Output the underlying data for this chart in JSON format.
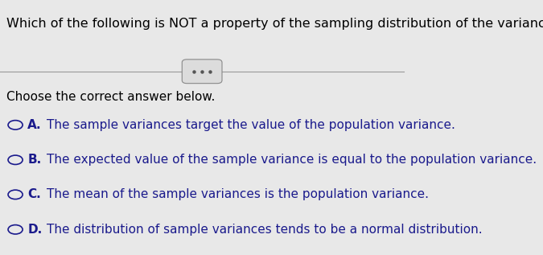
{
  "title": "Which of the following is NOT a property of the sampling distribution of the variance?",
  "subtitle": "Choose the correct answer below.",
  "options": [
    {
      "label": "A.",
      "text": "The sample variances target the value of the population variance."
    },
    {
      "label": "B.",
      "text": "The expected value of the sample variance is equal to the population variance."
    },
    {
      "label": "C.",
      "text": "The mean of the sample variances is the population variance."
    },
    {
      "label": "D.",
      "text": "The distribution of sample variances tends to be a normal distribution."
    }
  ],
  "bg_color": "#e8e8e8",
  "text_color": "#1a1a8c",
  "title_color": "#000000",
  "subtitle_color": "#000000",
  "divider_color": "#999999",
  "circle_color": "#1a1a8c",
  "dots_color": "#555555",
  "title_fontsize": 11.5,
  "subtitle_fontsize": 11,
  "option_fontsize": 11,
  "dots_button_color": "#d0d0d0"
}
